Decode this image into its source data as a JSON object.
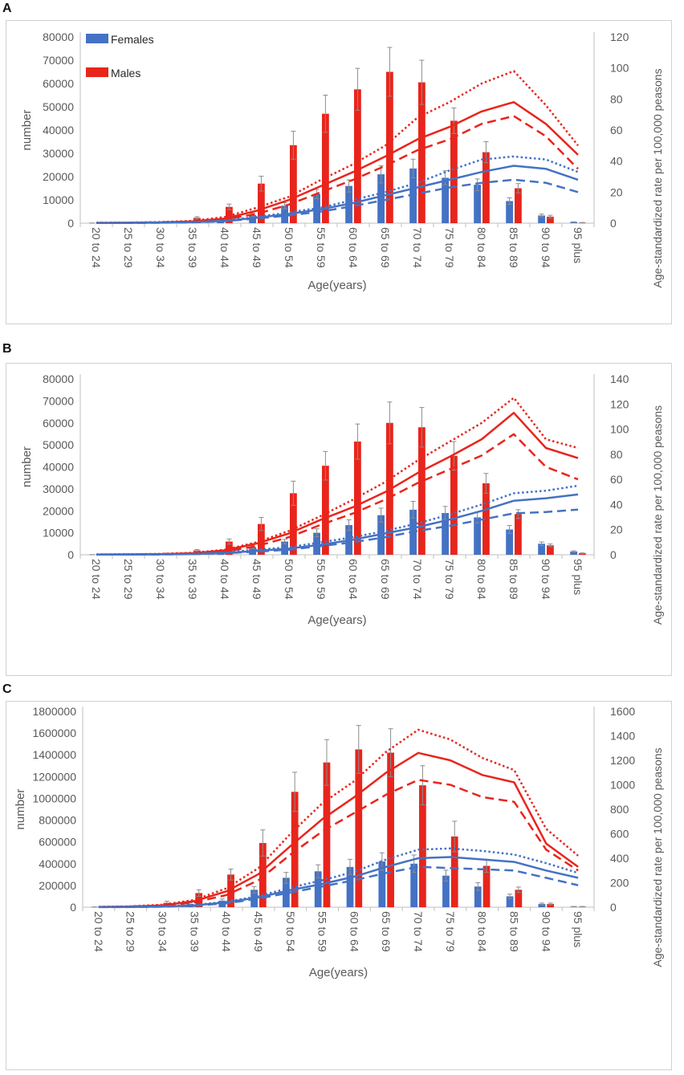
{
  "chart_data": [
    {
      "panel": "A",
      "type": "bar+line",
      "categories": [
        "20 to 24",
        "25 to 29",
        "30 to 34",
        "35 to 39",
        "40 to 44",
        "45 to 49",
        "50 to 54",
        "55 to 59",
        "60 to 64",
        "65 to 69",
        "70 to 74",
        "75 to 79",
        "80 to 84",
        "85 to 89",
        "90 to 94",
        "95 plus"
      ],
      "xlabel": "Age(years)",
      "ylabel": "number",
      "y2label": "Age-standardized  rate per 100,000 peasons",
      "ylim": [
        0,
        80000
      ],
      "ystep": 10000,
      "y2lim": [
        0,
        120
      ],
      "y2step": 20,
      "legend": [
        {
          "name": "Females",
          "color": "#4472C4"
        },
        {
          "name": "Males",
          "color": "#E8251C"
        }
      ],
      "bars": [
        {
          "name": "Females",
          "color": "#4472C4",
          "values": [
            50,
            150,
            300,
            600,
            1200,
            3500,
            7500,
            12500,
            16000,
            21000,
            23500,
            19500,
            16500,
            9500,
            3300,
            500
          ],
          "errors": [
            20,
            50,
            80,
            150,
            300,
            700,
            1300,
            2000,
            2600,
            3700,
            4000,
            3000,
            2500,
            1400,
            600,
            100
          ]
        },
        {
          "name": "Males",
          "color": "#E8251C",
          "values": [
            200,
            300,
            600,
            2300,
            7000,
            17000,
            33500,
            47000,
            57500,
            65000,
            60500,
            44000,
            30500,
            15000,
            2800,
            200
          ],
          "errors": [
            50,
            80,
            150,
            500,
            1200,
            3200,
            6000,
            8000,
            9000,
            10500,
            9500,
            5500,
            4500,
            2000,
            600,
            100
          ]
        }
      ],
      "lines": [
        {
          "name": "Males rate",
          "color": "#E8251C",
          "style": "solid",
          "values": [
            0.2,
            0.3,
            0.5,
            1.2,
            3,
            8,
            15,
            24,
            33,
            43,
            54,
            62,
            72,
            78,
            64,
            44
          ]
        },
        {
          "name": "Males upper",
          "color": "#E8251C",
          "style": "dotted",
          "values": [
            0.3,
            0.4,
            0.7,
            1.5,
            4,
            10,
            17,
            28,
            38,
            50,
            68,
            78,
            90,
            98,
            76,
            50
          ]
        },
        {
          "name": "Males lower",
          "color": "#E8251C",
          "style": "dashed",
          "values": [
            0.15,
            0.25,
            0.4,
            1,
            2.5,
            6,
            12,
            20,
            28,
            37,
            47,
            54,
            64,
            69,
            56,
            35
          ]
        },
        {
          "name": "Females rate",
          "color": "#4472C4",
          "style": "solid",
          "values": [
            0.1,
            0.2,
            0.3,
            0.6,
            1.5,
            3.5,
            6,
            9,
            13,
            18,
            23,
            28,
            33,
            37,
            35,
            28
          ]
        },
        {
          "name": "Females upper",
          "color": "#4472C4",
          "style": "dotted",
          "values": [
            0.15,
            0.25,
            0.4,
            0.7,
            1.8,
            4,
            7,
            10,
            15,
            20,
            26,
            34,
            41,
            43,
            41,
            33
          ]
        },
        {
          "name": "Females lower",
          "color": "#4472C4",
          "style": "dashed",
          "values": [
            0.1,
            0.15,
            0.25,
            0.5,
            1.3,
            3,
            5,
            7.5,
            11,
            15,
            19,
            23,
            26,
            28,
            26,
            20
          ]
        }
      ]
    },
    {
      "panel": "B",
      "type": "bar+line",
      "categories": [
        "20 to 24",
        "25 to 29",
        "30 to 34",
        "35 to 39",
        "40 to 44",
        "45 to 49",
        "50 to 54",
        "55 to 59",
        "60 to 64",
        "65 to 69",
        "70 to 74",
        "75 to 79",
        "80 to 84",
        "85 to 89",
        "90 to 94",
        "95 plus"
      ],
      "xlabel": "Age(years)",
      "ylabel": "number",
      "y2label": "Age-standardized  rate per 100,000 peasons",
      "ylim": [
        0,
        80000
      ],
      "ystep": 10000,
      "y2lim": [
        0,
        140
      ],
      "y2step": 20,
      "bars": [
        {
          "name": "Females",
          "color": "#4472C4",
          "values": [
            50,
            150,
            300,
            600,
            1300,
            3500,
            6000,
            10000,
            13500,
            18000,
            20500,
            19000,
            17000,
            11500,
            5000,
            1500
          ],
          "errors": [
            20,
            50,
            80,
            150,
            300,
            700,
            1000,
            1800,
            2400,
            3200,
            3800,
            3000,
            2500,
            1800,
            800,
            300
          ]
        },
        {
          "name": "Males",
          "color": "#E8251C",
          "values": [
            200,
            300,
            600,
            2000,
            6000,
            14000,
            28000,
            40500,
            51500,
            60000,
            58000,
            45000,
            32500,
            18500,
            4300,
            700
          ],
          "errors": [
            50,
            80,
            150,
            400,
            1200,
            3000,
            5500,
            6500,
            8000,
            9500,
            9000,
            6500,
            4500,
            2000,
            600,
            150
          ]
        }
      ],
      "lines": [
        {
          "name": "Males rate",
          "color": "#E8251C",
          "style": "solid",
          "values": [
            0.2,
            0.3,
            0.5,
            1.2,
            3.5,
            9,
            17,
            28,
            38,
            50,
            65,
            78,
            92,
            113,
            85,
            77
          ]
        },
        {
          "name": "Males upper",
          "color": "#E8251C",
          "style": "dotted",
          "values": [
            0.3,
            0.4,
            0.7,
            1.6,
            4,
            10,
            19,
            31,
            44,
            58,
            75,
            90,
            105,
            125,
            92,
            85
          ]
        },
        {
          "name": "Males lower",
          "color": "#E8251C",
          "style": "dashed",
          "values": [
            0.15,
            0.25,
            0.4,
            1,
            2.5,
            7,
            14,
            24,
            33,
            44,
            57,
            68,
            79,
            96,
            70,
            60
          ]
        },
        {
          "name": "Females rate",
          "color": "#4472C4",
          "style": "solid",
          "values": [
            0.1,
            0.2,
            0.3,
            0.6,
            1.5,
            3,
            5,
            8,
            12,
            17,
            22,
            28,
            35,
            43,
            45,
            48
          ]
        },
        {
          "name": "Females upper",
          "color": "#4472C4",
          "style": "dotted",
          "values": [
            0.15,
            0.25,
            0.4,
            0.8,
            2,
            4,
            6,
            10,
            14,
            19,
            25,
            32,
            40,
            49,
            51,
            55
          ]
        },
        {
          "name": "Females lower",
          "color": "#4472C4",
          "style": "dashed",
          "values": [
            0.1,
            0.15,
            0.25,
            0.5,
            1.2,
            2.5,
            4,
            7,
            10,
            14,
            19,
            23,
            28,
            33,
            34,
            36
          ]
        }
      ]
    },
    {
      "panel": "C",
      "type": "bar+line",
      "categories": [
        "20 to 24",
        "25 to 29",
        "30 to 34",
        "35 to 39",
        "40 to 44",
        "45 to 49",
        "50 to 54",
        "55 to 59",
        "60 to 64",
        "65 to 69",
        "70 to 74",
        "75 to 79",
        "80 to 84",
        "85 to 89",
        "90 to 94",
        "95 plus"
      ],
      "xlabel": "Age(years)",
      "ylabel": "number",
      "y2label": "Age-standardized  rate per 100,000 peasons",
      "ylim": [
        0,
        1800000
      ],
      "ystep": 200000,
      "y2lim": [
        0,
        1600
      ],
      "y2step": 200,
      "bars": [
        {
          "name": "Females",
          "color": "#4472C4",
          "values": [
            2000,
            5000,
            15000,
            30000,
            60000,
            160000,
            270000,
            330000,
            370000,
            420000,
            400000,
            290000,
            190000,
            100000,
            30000,
            5000
          ],
          "errors": [
            1000,
            2000,
            5000,
            10000,
            15000,
            30000,
            50000,
            60000,
            70000,
            80000,
            80000,
            50000,
            35000,
            20000,
            8000,
            2000
          ]
        },
        {
          "name": "Males",
          "color": "#E8251C",
          "values": [
            5000,
            10000,
            40000,
            130000,
            300000,
            590000,
            1060000,
            1330000,
            1450000,
            1420000,
            1120000,
            650000,
            380000,
            160000,
            30000,
            5000
          ],
          "errors": [
            3000,
            5000,
            15000,
            30000,
            50000,
            120000,
            180000,
            210000,
            220000,
            220000,
            180000,
            140000,
            60000,
            25000,
            8000,
            2000
          ]
        }
      ],
      "lines": [
        {
          "name": "Males rate",
          "color": "#E8251C",
          "style": "solid",
          "values": [
            2,
            5,
            15,
            50,
            130,
            270,
            500,
            720,
            900,
            1100,
            1260,
            1200,
            1080,
            1020,
            520,
            330
          ]
        },
        {
          "name": "Males upper",
          "color": "#E8251C",
          "style": "dotted",
          "values": [
            3,
            7,
            20,
            60,
            155,
            320,
            600,
            850,
            1030,
            1270,
            1450,
            1370,
            1220,
            1120,
            640,
            420
          ]
        },
        {
          "name": "Males lower",
          "color": "#E8251C",
          "style": "dashed",
          "values": [
            1,
            4,
            10,
            40,
            100,
            220,
            430,
            620,
            770,
            920,
            1040,
            1000,
            900,
            860,
            470,
            300
          ]
        },
        {
          "name": "Females rate",
          "color": "#4472C4",
          "style": "solid",
          "values": [
            1,
            2,
            5,
            15,
            40,
            80,
            140,
            190,
            250,
            330,
            400,
            410,
            390,
            370,
            300,
            240
          ]
        },
        {
          "name": "Females upper",
          "color": "#4472C4",
          "style": "dotted",
          "values": [
            1.5,
            3,
            7,
            18,
            45,
            90,
            160,
            220,
            290,
            390,
            470,
            480,
            460,
            430,
            360,
            280
          ]
        },
        {
          "name": "Females lower",
          "color": "#4472C4",
          "style": "dashed",
          "values": [
            0.5,
            1.5,
            4,
            12,
            32,
            70,
            120,
            170,
            220,
            280,
            330,
            320,
            310,
            300,
            240,
            180
          ]
        }
      ]
    }
  ]
}
